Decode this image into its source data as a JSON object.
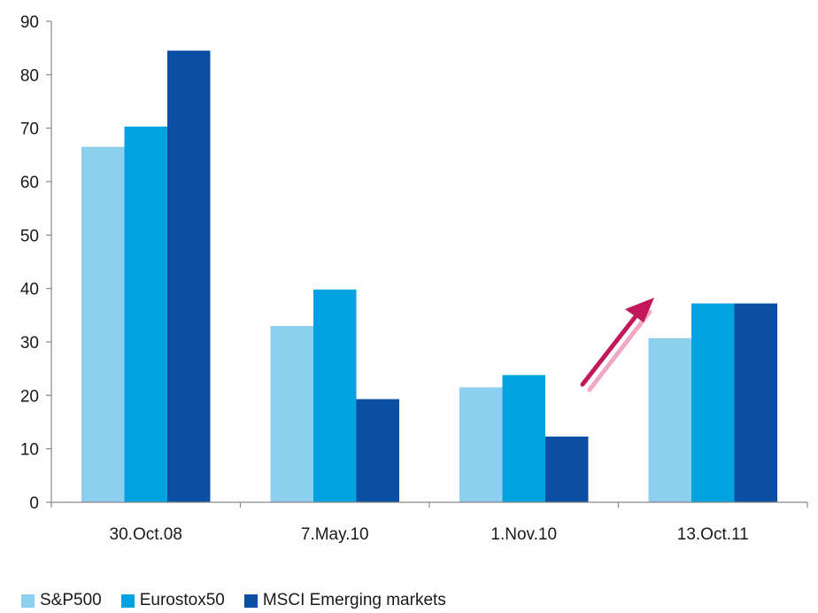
{
  "chart_data": {
    "type": "bar",
    "title": "",
    "xlabel": "",
    "ylabel": "",
    "categories": [
      "30.Oct.08",
      "7.May.10",
      "1.Nov.10",
      "13.Oct.11"
    ],
    "series": [
      {
        "name": "S&P500",
        "color": "#8ccfef",
        "values": [
          66.5,
          33,
          21.5,
          30.7
        ]
      },
      {
        "name": "Eurostox50",
        "color": "#00a3e0",
        "values": [
          70.3,
          39.8,
          23.8,
          37.2
        ]
      },
      {
        "name": "MSCI Emerging markets",
        "color": "#0b4fa2",
        "values": [
          84.5,
          19.3,
          12.3,
          37.2
        ]
      }
    ],
    "ylim": [
      0,
      90
    ],
    "yticks": [
      "0",
      "10",
      "20",
      "30",
      "40",
      "50",
      "60",
      "70",
      "80",
      "90"
    ],
    "grid": false,
    "legend_position": "bottom-left",
    "annotation": {
      "type": "arrow",
      "direction": "up-right",
      "color": "#c2185b"
    }
  }
}
